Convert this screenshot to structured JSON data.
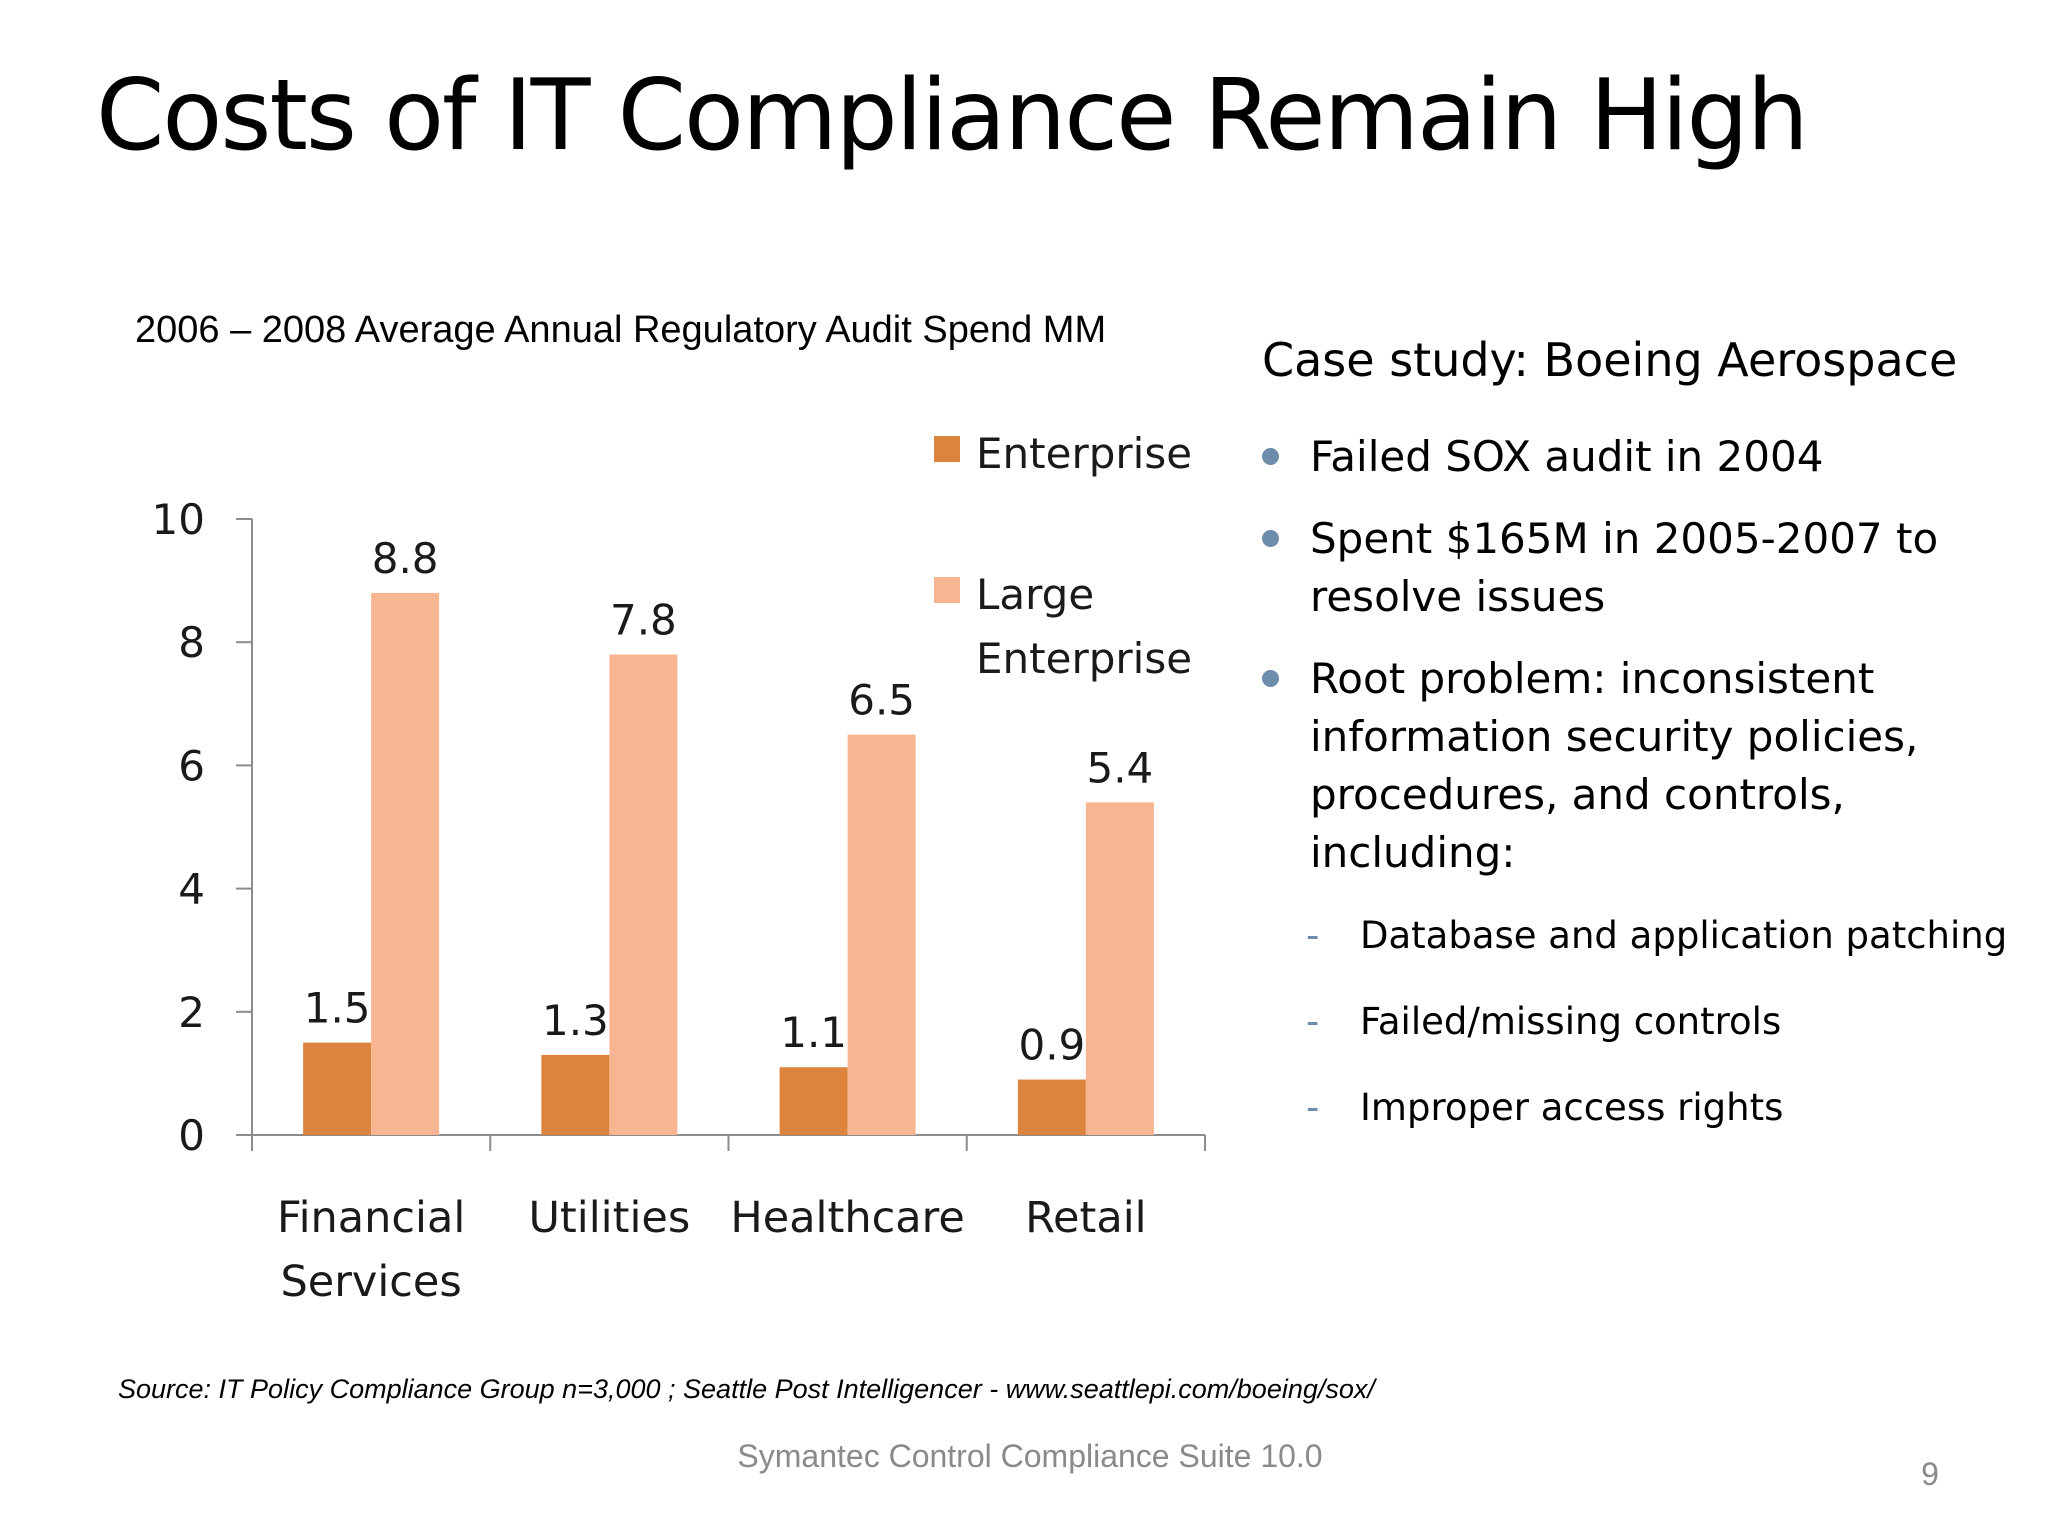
{
  "slide": {
    "title": "Costs of IT Compliance Remain High",
    "source": "Source:  IT Policy Compliance Group n=3,000 ; Seattle Post Intelligencer - www.seattlepi.com/boeing/sox/",
    "footer": "Symantec Control Compliance Suite 10.0",
    "page_number": "9"
  },
  "chart_data": {
    "type": "bar",
    "title": "2006 – 2008 Average Annual Regulatory Audit Spend MM",
    "categories": [
      "Financial Services",
      "Utilities",
      "Healthcare",
      "Retail"
    ],
    "series": [
      {
        "name": "Enterprise",
        "values": [
          1.5,
          1.3,
          1.1,
          0.9
        ],
        "color": "#dc843d"
      },
      {
        "name": "Large Enterprise",
        "values": [
          8.8,
          7.8,
          6.5,
          5.4
        ],
        "color": "#f8b591"
      }
    ],
    "y_ticks": [
      "0",
      "2",
      "4",
      "6",
      "8",
      "10"
    ],
    "ylim": [
      0,
      10
    ],
    "grid": false,
    "legend_position": "top-right"
  },
  "case_study": {
    "title": "Case study: Boeing Aerospace",
    "bullets": [
      "Failed SOX audit in 2004",
      "Spent $165M in 2005-2007 to resolve issues",
      "Root problem: inconsistent information security policies, procedures, and controls, including:"
    ],
    "sub_bullets": [
      "Database and application patching",
      "Failed/missing controls",
      "Improper access rights"
    ]
  }
}
